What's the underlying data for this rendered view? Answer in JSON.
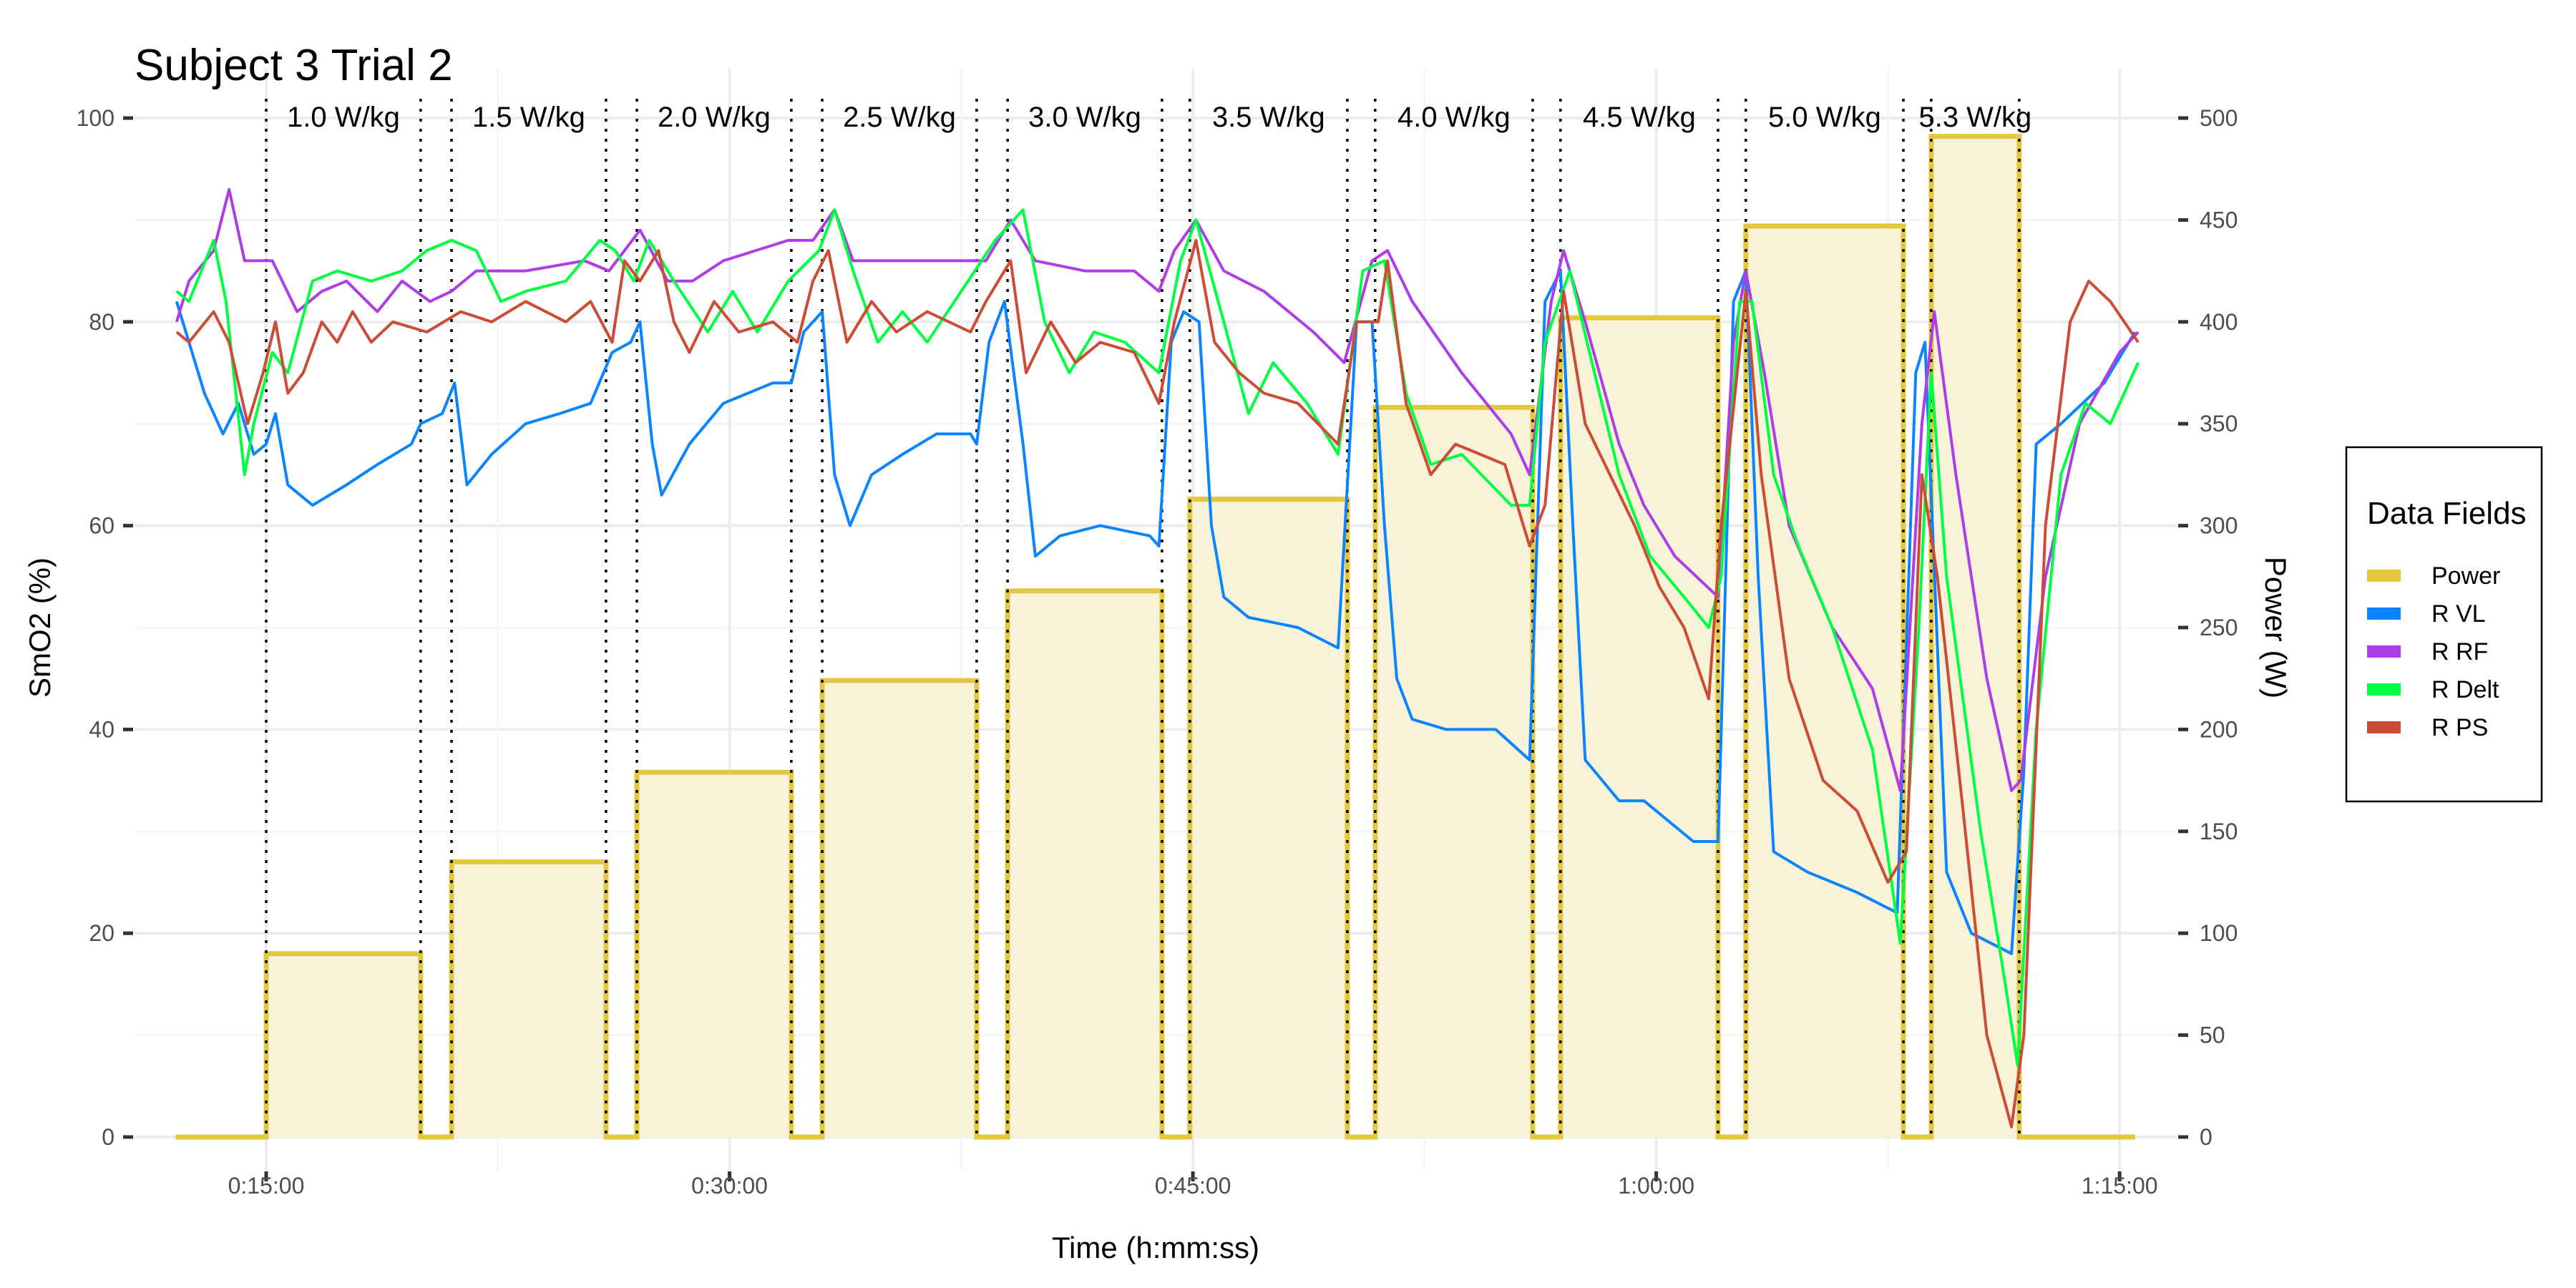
{
  "chart_data": {
    "type": "line",
    "title": "Subject 3 Trial 2",
    "xlabel": "Time (h:mm:ss)",
    "ylabel": "SmO2 (%)",
    "y2label": "Power (W)",
    "x_unit": "minutes",
    "xlim": [
      12.07,
      75.6
    ],
    "ylim": [
      0,
      100
    ],
    "y2lim": [
      0,
      500
    ],
    "x_ticks": [
      {
        "t": 15,
        "label": "0:15:00"
      },
      {
        "t": 30,
        "label": "0:30:00"
      },
      {
        "t": 45,
        "label": "0:45:00"
      },
      {
        "t": 60,
        "label": "1:00:00"
      },
      {
        "t": 75,
        "label": "1:15:00"
      }
    ],
    "y_ticks": [
      "0",
      "20",
      "40",
      "60",
      "80",
      "100"
    ],
    "y2_ticks": [
      "0",
      "50",
      "100",
      "150",
      "200",
      "250",
      "300",
      "350",
      "400",
      "450",
      "500"
    ],
    "grid": true,
    "legend": {
      "title": "Data Fields",
      "placement": "right",
      "entries": [
        "Power",
        "R VL",
        "R RF",
        "R Delt",
        "R PS"
      ]
    },
    "colors": {
      "Power": "#E3C83F",
      "R VL": "#0A84FF",
      "R RF": "#AE3DE8",
      "R Delt": "#00FF40",
      "R PS": "#CC4C36",
      "power_fill": "#F8F2D8"
    },
    "stages": [
      {
        "label": "1.0 W/kg",
        "start": 15.0,
        "end": 20.0,
        "power": 90
      },
      {
        "label": "1.5 W/kg",
        "start": 21.0,
        "end": 26.0,
        "power": 135
      },
      {
        "label": "2.0 W/kg",
        "start": 27.0,
        "end": 32.0,
        "power": 179
      },
      {
        "label": "2.5 W/kg",
        "start": 33.0,
        "end": 38.0,
        "power": 224
      },
      {
        "label": "3.0 W/kg",
        "start": 39.0,
        "end": 44.0,
        "power": 268
      },
      {
        "label": "3.5 W/kg",
        "start": 44.9,
        "end": 50.0,
        "power": 313
      },
      {
        "label": "4.0 W/kg",
        "start": 50.9,
        "end": 56.0,
        "power": 358
      },
      {
        "label": "4.5 W/kg",
        "start": 56.9,
        "end": 62.0,
        "power": 402
      },
      {
        "label": "5.0 W/kg",
        "start": 62.9,
        "end": 68.0,
        "power": 447
      },
      {
        "label": "5.3 W/kg",
        "start": 68.9,
        "end": 71.75,
        "power": 491
      }
    ],
    "power_end": 75.5,
    "series": [
      {
        "name": "R VL",
        "t": [
          12.1,
          13.0,
          13.6,
          14.1,
          14.6,
          15.0,
          15.3,
          15.7,
          16.5,
          17.6,
          18.6,
          19.7,
          20.0,
          20.7,
          21.1,
          21.5,
          22.3,
          23.4,
          24.5,
          25.5,
          26.2,
          26.8,
          27.1,
          27.5,
          27.8,
          28.7,
          29.8,
          31.4,
          32.0,
          32.4,
          33.0,
          33.4,
          33.9,
          34.6,
          35.6,
          36.7,
          37.8,
          38.0,
          38.4,
          38.9,
          39.5,
          39.9,
          40.7,
          42.0,
          43.6,
          43.9,
          44.3,
          44.7,
          45.2,
          45.6,
          46.0,
          46.8,
          48.4,
          49.7,
          50.3,
          50.8,
          51.2,
          51.6,
          52.1,
          53.2,
          54.8,
          55.9,
          56.4,
          56.9,
          57.3,
          57.7,
          58.8,
          59.6,
          61.2,
          62.0,
          62.5,
          62.9,
          63.3,
          63.8,
          64.9,
          66.5,
          67.8,
          68.4,
          68.7,
          69.4,
          70.2,
          71.5,
          71.9,
          72.3,
          73.1,
          74.5,
          75.5
        ],
        "values": [
          82,
          73,
          69,
          72,
          67,
          68,
          71,
          64,
          62,
          64,
          66,
          68,
          70,
          71,
          74,
          64,
          67,
          70,
          71,
          72,
          77,
          78,
          80,
          68,
          63,
          68,
          72,
          74,
          74,
          79,
          81,
          65,
          60,
          65,
          67,
          69,
          69,
          68,
          78,
          82,
          68,
          57,
          59,
          60,
          59,
          58,
          78,
          81,
          80,
          60,
          53,
          51,
          50,
          48,
          80,
          80,
          60,
          45,
          41,
          40,
          40,
          37,
          82,
          85,
          60,
          37,
          33,
          33,
          29,
          29,
          82,
          85,
          55,
          28,
          26,
          24,
          22,
          75,
          78,
          26,
          20,
          18,
          36,
          68,
          70,
          74,
          79
        ]
      },
      {
        "name": "R RF",
        "t": [
          12.1,
          12.5,
          13.3,
          13.8,
          14.3,
          15.2,
          16.0,
          16.8,
          17.6,
          18.6,
          19.4,
          20.3,
          21.0,
          21.8,
          23.4,
          25.3,
          26.1,
          27.1,
          28.0,
          28.8,
          29.8,
          31.9,
          32.7,
          33.4,
          34.0,
          35.6,
          37.2,
          38.3,
          39.1,
          39.9,
          41.5,
          43.1,
          43.9,
          44.4,
          45.1,
          46.0,
          47.3,
          48.9,
          49.9,
          50.8,
          51.3,
          52.1,
          53.7,
          55.3,
          55.9,
          56.6,
          57.0,
          57.7,
          58.8,
          59.6,
          60.6,
          62.0,
          62.5,
          62.9,
          63.5,
          64.3,
          65.7,
          67.0,
          67.9,
          68.6,
          69.0,
          69.7,
          70.7,
          71.5,
          71.8,
          72.6,
          73.7,
          75.0,
          75.6
        ],
        "values": [
          80,
          84,
          87,
          93,
          86,
          86,
          81,
          83,
          84,
          81,
          84,
          82,
          83,
          85,
          85,
          86,
          85,
          89,
          84,
          84,
          86,
          88,
          88,
          91,
          86,
          86,
          86,
          86,
          90,
          86,
          85,
          85,
          83,
          87,
          90,
          85,
          83,
          79,
          76,
          86,
          87,
          82,
          75,
          69,
          65,
          82,
          87,
          80,
          68,
          62,
          57,
          53,
          78,
          85,
          75,
          60,
          50,
          44,
          34,
          70,
          81,
          65,
          45,
          34,
          35,
          55,
          70,
          77,
          79
        ]
      },
      {
        "name": "R Delt",
        "t": [
          12.1,
          12.5,
          13.3,
          13.7,
          14.3,
          14.6,
          15.2,
          15.7,
          16.5,
          17.3,
          18.4,
          19.4,
          20.2,
          21.0,
          21.8,
          22.6,
          23.4,
          24.7,
          25.8,
          26.3,
          26.9,
          27.4,
          28.2,
          29.3,
          30.1,
          30.9,
          31.9,
          32.9,
          33.4,
          34.0,
          34.8,
          35.6,
          36.4,
          37.5,
          38.6,
          39.5,
          40.2,
          41.0,
          41.8,
          42.8,
          43.9,
          44.6,
          45.1,
          46.0,
          46.8,
          47.6,
          48.7,
          49.7,
          50.5,
          51.2,
          51.9,
          52.7,
          53.7,
          55.3,
          55.9,
          56.4,
          57.2,
          58.0,
          58.8,
          59.8,
          60.9,
          61.7,
          62.1,
          62.7,
          63.1,
          63.8,
          64.6,
          65.7,
          67.0,
          67.9,
          68.5,
          68.9,
          69.4,
          70.5,
          71.3,
          71.7,
          72.3,
          73.1,
          73.9,
          74.7,
          75.6
        ],
        "values": [
          83,
          82,
          88,
          82,
          65,
          70,
          77,
          75,
          84,
          85,
          84,
          85,
          87,
          88,
          87,
          82,
          83,
          84,
          88,
          87,
          84,
          88,
          84,
          79,
          83,
          79,
          84,
          87,
          91,
          85,
          78,
          81,
          78,
          83,
          88,
          91,
          80,
          75,
          79,
          78,
          75,
          86,
          90,
          80,
          71,
          76,
          72,
          67,
          85,
          86,
          73,
          66,
          67,
          62,
          62,
          78,
          85,
          75,
          65,
          57,
          53,
          50,
          55,
          82,
          82,
          65,
          58,
          50,
          38,
          19,
          50,
          75,
          55,
          30,
          15,
          7,
          40,
          65,
          72,
          70,
          76
        ]
      },
      {
        "name": "R PS",
        "t": [
          12.1,
          12.5,
          13.3,
          13.8,
          14.4,
          14.9,
          15.3,
          15.7,
          16.2,
          16.8,
          17.3,
          17.8,
          18.4,
          19.1,
          20.2,
          21.3,
          22.3,
          23.4,
          24.7,
          25.5,
          26.2,
          26.6,
          27.1,
          27.7,
          28.2,
          28.7,
          29.5,
          30.3,
          31.4,
          32.2,
          32.7,
          33.2,
          33.8,
          34.6,
          35.4,
          36.4,
          37.8,
          38.3,
          39.1,
          39.6,
          40.4,
          41.2,
          42.0,
          43.1,
          43.9,
          44.4,
          45.1,
          45.7,
          46.5,
          47.3,
          48.4,
          49.7,
          50.3,
          51.0,
          51.3,
          51.9,
          52.7,
          53.5,
          54.3,
          55.1,
          55.9,
          56.4,
          57.0,
          57.7,
          58.5,
          59.3,
          60.1,
          60.9,
          61.7,
          62.1,
          62.9,
          63.4,
          64.3,
          65.4,
          66.5,
          67.5,
          68.1,
          68.6,
          69.1,
          69.9,
          70.7,
          71.5,
          71.9,
          72.6,
          73.4,
          74.0,
          74.7,
          75.6
        ],
        "values": [
          79,
          78,
          81,
          78,
          70,
          75,
          80,
          73,
          75,
          80,
          78,
          81,
          78,
          80,
          79,
          81,
          80,
          82,
          80,
          82,
          78,
          86,
          84,
          87,
          80,
          77,
          82,
          79,
          80,
          78,
          84,
          87,
          78,
          82,
          79,
          81,
          79,
          82,
          86,
          75,
          80,
          76,
          78,
          77,
          72,
          80,
          88,
          78,
          75,
          73,
          72,
          68,
          80,
          80,
          86,
          72,
          65,
          68,
          67,
          66,
          58,
          62,
          83,
          70,
          65,
          60,
          54,
          50,
          43,
          60,
          83,
          65,
          45,
          35,
          32,
          25,
          28,
          65,
          55,
          33,
          10,
          1,
          10,
          60,
          80,
          84,
          82,
          78
        ]
      }
    ]
  }
}
